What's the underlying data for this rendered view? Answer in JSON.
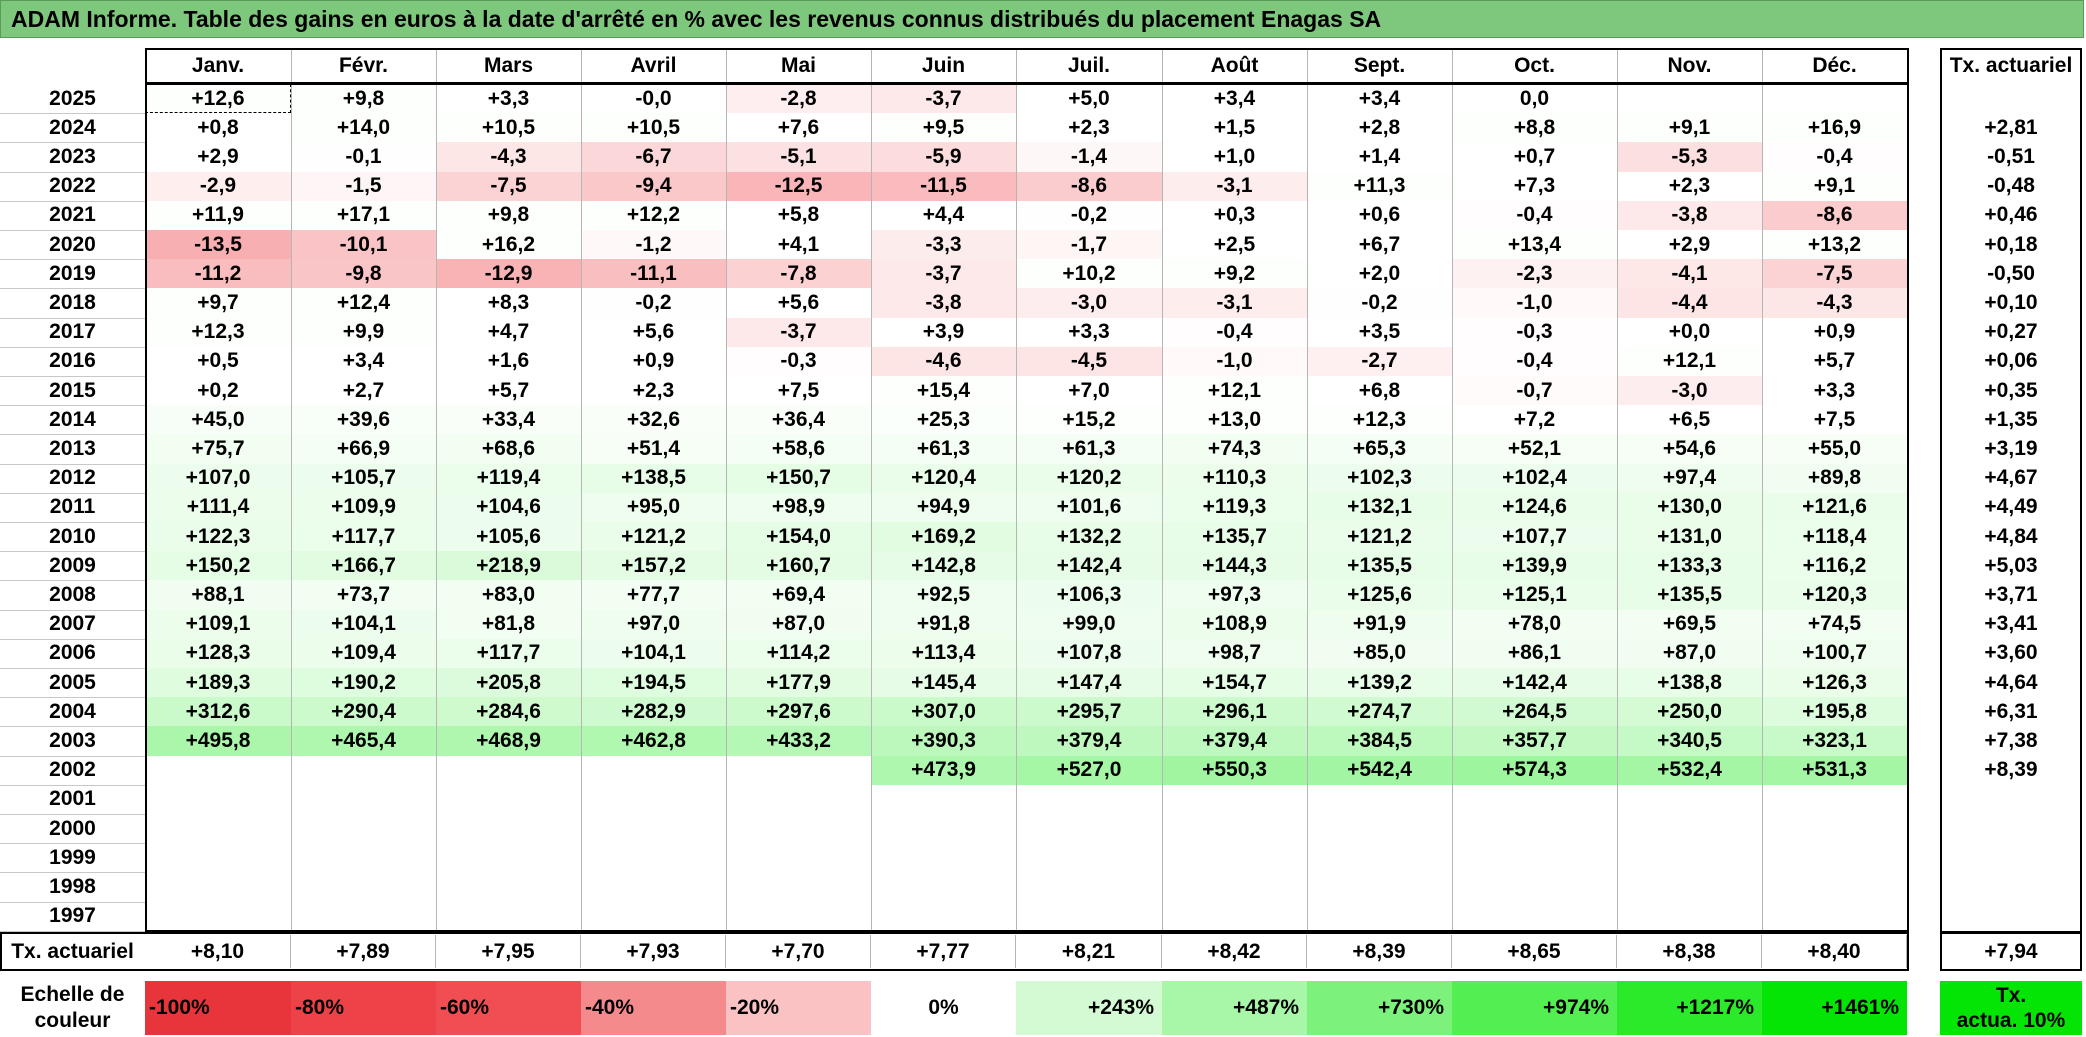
{
  "title": "ADAM Informe. Table des gains en euros à la date d'arrêté en % avec les revenus connus distribués du placement Enagas SA",
  "chart_data": {
    "type": "table",
    "months": [
      "Janv.",
      "Févr.",
      "Mars",
      "Avril",
      "Mai",
      "Juin",
      "Juil.",
      "Août",
      "Sept.",
      "Oct.",
      "Nov.",
      "Déc."
    ],
    "rate_header": "Tx. actuariel",
    "rows": [
      {
        "year": "2025",
        "values": [
          "+12,6",
          "+9,8",
          "+3,3",
          "-0,0",
          "-2,8",
          "-3,7",
          "+5,0",
          "+3,4",
          "+3,4",
          "0,0",
          "",
          ""
        ],
        "rate": ""
      },
      {
        "year": "2024",
        "values": [
          "+0,8",
          "+14,0",
          "+10,5",
          "+10,5",
          "+7,6",
          "+9,5",
          "+2,3",
          "+1,5",
          "+2,8",
          "+8,8",
          "+9,1",
          "+16,9"
        ],
        "rate": "+2,81"
      },
      {
        "year": "2023",
        "values": [
          "+2,9",
          "-0,1",
          "-4,3",
          "-6,7",
          "-5,1",
          "-5,9",
          "-1,4",
          "+1,0",
          "+1,4",
          "+0,7",
          "-5,3",
          "-0,4"
        ],
        "rate": "-0,51"
      },
      {
        "year": "2022",
        "values": [
          "-2,9",
          "-1,5",
          "-7,5",
          "-9,4",
          "-12,5",
          "-11,5",
          "-8,6",
          "-3,1",
          "+11,3",
          "+7,3",
          "+2,3",
          "+9,1"
        ],
        "rate": "-0,48"
      },
      {
        "year": "2021",
        "values": [
          "+11,9",
          "+17,1",
          "+9,8",
          "+12,2",
          "+5,8",
          "+4,4",
          "-0,2",
          "+0,3",
          "+0,6",
          "-0,4",
          "-3,8",
          "-8,6"
        ],
        "rate": "+0,46"
      },
      {
        "year": "2020",
        "values": [
          "-13,5",
          "-10,1",
          "+16,2",
          "-1,2",
          "+4,1",
          "-3,3",
          "-1,7",
          "+2,5",
          "+6,7",
          "+13,4",
          "+2,9",
          "+13,2"
        ],
        "rate": "+0,18"
      },
      {
        "year": "2019",
        "values": [
          "-11,2",
          "-9,8",
          "-12,9",
          "-11,1",
          "-7,8",
          "-3,7",
          "+10,2",
          "+9,2",
          "+2,0",
          "-2,3",
          "-4,1",
          "-7,5"
        ],
        "rate": "-0,50"
      },
      {
        "year": "2018",
        "values": [
          "+9,7",
          "+12,4",
          "+8,3",
          "-0,2",
          "+5,6",
          "-3,8",
          "-3,0",
          "-3,1",
          "-0,2",
          "-1,0",
          "-4,4",
          "-4,3"
        ],
        "rate": "+0,10"
      },
      {
        "year": "2017",
        "values": [
          "+12,3",
          "+9,9",
          "+4,7",
          "+5,6",
          "-3,7",
          "+3,9",
          "+3,3",
          "-0,4",
          "+3,5",
          "-0,3",
          "+0,0",
          "+0,9"
        ],
        "rate": "+0,27"
      },
      {
        "year": "2016",
        "values": [
          "+0,5",
          "+3,4",
          "+1,6",
          "+0,9",
          "-0,3",
          "-4,6",
          "-4,5",
          "-1,0",
          "-2,7",
          "-0,4",
          "+12,1",
          "+5,7"
        ],
        "rate": "+0,06"
      },
      {
        "year": "2015",
        "values": [
          "+0,2",
          "+2,7",
          "+5,7",
          "+2,3",
          "+7,5",
          "+15,4",
          "+7,0",
          "+12,1",
          "+6,8",
          "-0,7",
          "-3,0",
          "+3,3"
        ],
        "rate": "+0,35"
      },
      {
        "year": "2014",
        "values": [
          "+45,0",
          "+39,6",
          "+33,4",
          "+32,6",
          "+36,4",
          "+25,3",
          "+15,2",
          "+13,0",
          "+12,3",
          "+7,2",
          "+6,5",
          "+7,5"
        ],
        "rate": "+1,35"
      },
      {
        "year": "2013",
        "values": [
          "+75,7",
          "+66,9",
          "+68,6",
          "+51,4",
          "+58,6",
          "+61,3",
          "+61,3",
          "+74,3",
          "+65,3",
          "+52,1",
          "+54,6",
          "+55,0"
        ],
        "rate": "+3,19"
      },
      {
        "year": "2012",
        "values": [
          "+107,0",
          "+105,7",
          "+119,4",
          "+138,5",
          "+150,7",
          "+120,4",
          "+120,2",
          "+110,3",
          "+102,3",
          "+102,4",
          "+97,4",
          "+89,8"
        ],
        "rate": "+4,67"
      },
      {
        "year": "2011",
        "values": [
          "+111,4",
          "+109,9",
          "+104,6",
          "+95,0",
          "+98,9",
          "+94,9",
          "+101,6",
          "+119,3",
          "+132,1",
          "+124,6",
          "+130,0",
          "+121,6"
        ],
        "rate": "+4,49"
      },
      {
        "year": "2010",
        "values": [
          "+122,3",
          "+117,7",
          "+105,6",
          "+121,2",
          "+154,0",
          "+169,2",
          "+132,2",
          "+135,7",
          "+121,2",
          "+107,7",
          "+131,0",
          "+118,4"
        ],
        "rate": "+4,84"
      },
      {
        "year": "2009",
        "values": [
          "+150,2",
          "+166,7",
          "+218,9",
          "+157,2",
          "+160,7",
          "+142,8",
          "+142,4",
          "+144,3",
          "+135,5",
          "+139,9",
          "+133,3",
          "+116,2"
        ],
        "rate": "+5,03"
      },
      {
        "year": "2008",
        "values": [
          "+88,1",
          "+73,7",
          "+83,0",
          "+77,7",
          "+69,4",
          "+92,5",
          "+106,3",
          "+97,3",
          "+125,6",
          "+125,1",
          "+135,5",
          "+120,3"
        ],
        "rate": "+3,71"
      },
      {
        "year": "2007",
        "values": [
          "+109,1",
          "+104,1",
          "+81,8",
          "+97,0",
          "+87,0",
          "+91,8",
          "+99,0",
          "+108,9",
          "+91,9",
          "+78,0",
          "+69,5",
          "+74,5"
        ],
        "rate": "+3,41"
      },
      {
        "year": "2006",
        "values": [
          "+128,3",
          "+109,4",
          "+117,7",
          "+104,1",
          "+114,2",
          "+113,4",
          "+107,8",
          "+98,7",
          "+85,0",
          "+86,1",
          "+87,0",
          "+100,7"
        ],
        "rate": "+3,60"
      },
      {
        "year": "2005",
        "values": [
          "+189,3",
          "+190,2",
          "+205,8",
          "+194,5",
          "+177,9",
          "+145,4",
          "+147,4",
          "+154,7",
          "+139,2",
          "+142,4",
          "+138,8",
          "+126,3"
        ],
        "rate": "+4,64"
      },
      {
        "year": "2004",
        "values": [
          "+312,6",
          "+290,4",
          "+284,6",
          "+282,9",
          "+297,6",
          "+307,0",
          "+295,7",
          "+296,1",
          "+274,7",
          "+264,5",
          "+250,0",
          "+195,8"
        ],
        "rate": "+6,31"
      },
      {
        "year": "2003",
        "values": [
          "+495,8",
          "+465,4",
          "+468,9",
          "+462,8",
          "+433,2",
          "+390,3",
          "+379,4",
          "+379,4",
          "+384,5",
          "+357,7",
          "+340,5",
          "+323,1"
        ],
        "rate": "+7,38"
      },
      {
        "year": "2002",
        "values": [
          "",
          "",
          "",
          "",
          "",
          "+473,9",
          "+527,0",
          "+550,3",
          "+542,4",
          "+574,3",
          "+532,4",
          "+531,3"
        ],
        "rate": "+8,39"
      },
      {
        "year": "2001",
        "values": [
          "",
          "",
          "",
          "",
          "",
          "",
          "",
          "",
          "",
          "",
          "",
          ""
        ],
        "rate": ""
      },
      {
        "year": "2000",
        "values": [
          "",
          "",
          "",
          "",
          "",
          "",
          "",
          "",
          "",
          "",
          "",
          ""
        ],
        "rate": ""
      },
      {
        "year": "1999",
        "values": [
          "",
          "",
          "",
          "",
          "",
          "",
          "",
          "",
          "",
          "",
          "",
          ""
        ],
        "rate": ""
      },
      {
        "year": "1998",
        "values": [
          "",
          "",
          "",
          "",
          "",
          "",
          "",
          "",
          "",
          "",
          "",
          ""
        ],
        "rate": ""
      },
      {
        "year": "1997",
        "values": [
          "",
          "",
          "",
          "",
          "",
          "",
          "",
          "",
          "",
          "",
          "",
          ""
        ],
        "rate": ""
      }
    ],
    "footer": {
      "label": "Tx. actuariel",
      "values": [
        "+8,10",
        "+7,89",
        "+7,95",
        "+7,93",
        "+7,70",
        "+7,77",
        "+8,21",
        "+8,42",
        "+8,39",
        "+8,65",
        "+8,38",
        "+8,40"
      ],
      "total": "+7,94"
    },
    "scale": {
      "label_line1": "Echelle de",
      "label_line2": "couleur",
      "entries": [
        {
          "text": "-100%",
          "color": "#e8353c"
        },
        {
          "text": "-80%",
          "color": "#ec4248"
        },
        {
          "text": "-60%",
          "color": "#f04e53"
        },
        {
          "text": "-40%",
          "color": "#f58a8d"
        },
        {
          "text": "-20%",
          "color": "#fbc2c4"
        },
        {
          "text": "0%",
          "color": "#ffffff"
        },
        {
          "text": "+243%",
          "color": "#d4fad4"
        },
        {
          "text": "+487%",
          "color": "#a8f6a8"
        },
        {
          "text": "+730%",
          "color": "#7cf27c"
        },
        {
          "text": "+974%",
          "color": "#52ee52"
        },
        {
          "text": "+1217%",
          "color": "#2aea2a"
        },
        {
          "text": "+1461%",
          "color": "#05e505"
        }
      ],
      "rate_line1": "Tx.",
      "rate_line2": "actua. 10%",
      "rate_color": "#05e505"
    },
    "colors": {
      "title_bg": "#7ec87e",
      "negative_max": "#f04e53",
      "positive_max": "#05e505"
    }
  }
}
